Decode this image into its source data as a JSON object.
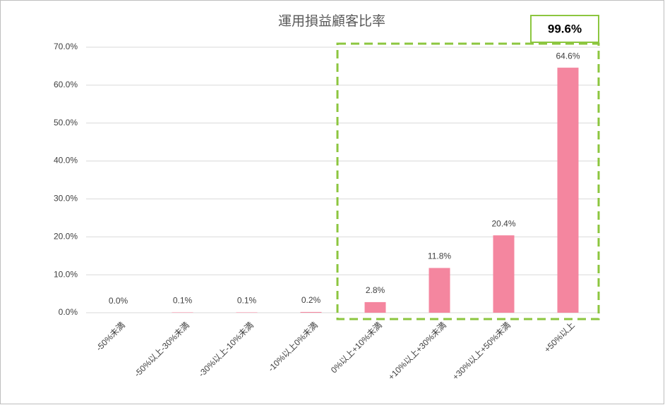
{
  "chart_data": {
    "type": "bar",
    "title": "運用損益顧客比率",
    "categories": [
      "-50%未満",
      "-50%以上-30%未満",
      "-30%以上-10%未満",
      "-10%以上0%未満",
      "0%以上+10%未満",
      "+10%以上+30%未満",
      "+30%以上+50%未満",
      "+50%以上"
    ],
    "values": [
      0.0,
      0.1,
      0.1,
      0.2,
      2.8,
      11.8,
      20.4,
      64.6
    ],
    "value_labels": [
      "0.0%",
      "0.1%",
      "0.1%",
      "0.2%",
      "2.8%",
      "11.8%",
      "20.4%",
      "64.6%"
    ],
    "color": "#f4869f",
    "ylim": [
      0,
      70
    ],
    "yticks": [
      {
        "value": 0,
        "label": "0.0%"
      },
      {
        "value": 10,
        "label": "10.0%"
      },
      {
        "value": 20,
        "label": "20.0%"
      },
      {
        "value": 30,
        "label": "30.0%"
      },
      {
        "value": 40,
        "label": "40.0%"
      },
      {
        "value": 50,
        "label": "50.0%"
      },
      {
        "value": 60,
        "label": "60.0%"
      },
      {
        "value": 70,
        "label": "70.0%"
      }
    ],
    "grid": true,
    "annotation": "99.6%"
  }
}
